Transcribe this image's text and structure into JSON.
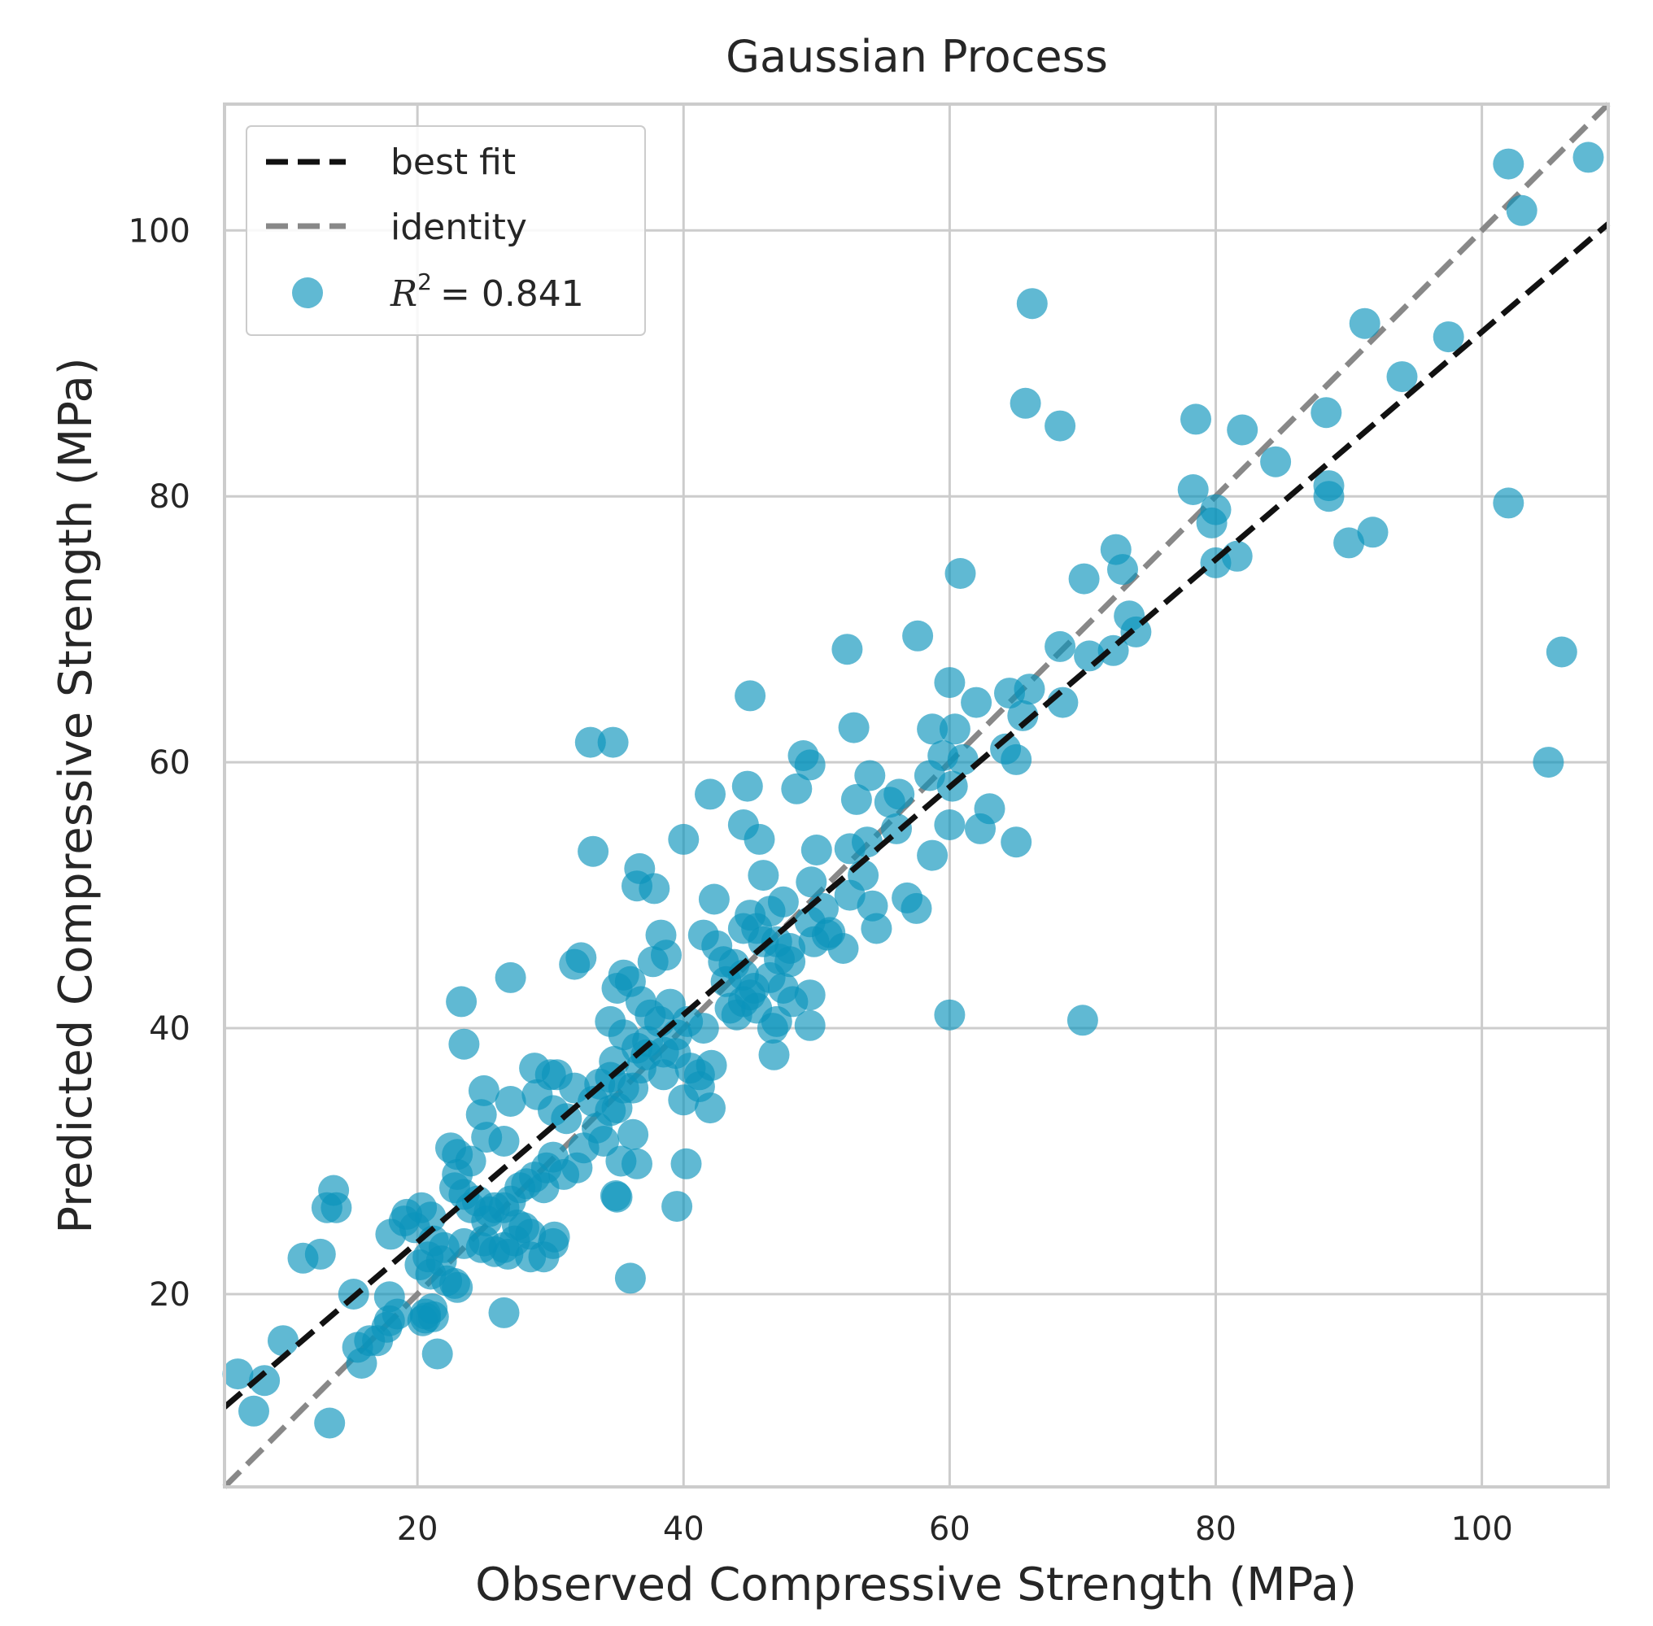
{
  "chart_data": {
    "type": "scatter",
    "title": "Gaussian Process",
    "xlabel": "Observed Compressive Strength (MPa)",
    "ylabel": "Predicted Compressive Strength (MPa)",
    "xlim": [
      5.5,
      109.5
    ],
    "ylim": [
      5.5,
      109.5
    ],
    "xticks": [
      20,
      40,
      60,
      80,
      100
    ],
    "yticks": [
      20,
      40,
      60,
      80,
      100
    ],
    "grid": true,
    "legend_position": "top-left",
    "legend": {
      "best_fit_label": "best fit",
      "identity_label": "identity",
      "r2_symbol": "R",
      "r2_exponent": "2",
      "r2_value": "= 0.841"
    },
    "best_fit_line": {
      "x": [
        5.5,
        109.5
      ],
      "y": [
        11.5,
        100.5
      ]
    },
    "identity_line": {
      "x": [
        5.5,
        109.5
      ],
      "y": [
        5.5,
        109.5
      ]
    },
    "colors": {
      "points": "#0a94bc",
      "best_fit": "#111111",
      "identity": "#888888",
      "grid": "#cccccc"
    },
    "points": [
      [
        108,
        105.5
      ],
      [
        102,
        105
      ],
      [
        103,
        101.5
      ],
      [
        102,
        79.5
      ],
      [
        106,
        68.3
      ],
      [
        105,
        60
      ],
      [
        97.5,
        92
      ],
      [
        91.2,
        93
      ],
      [
        94,
        89
      ],
      [
        88.3,
        86.3
      ],
      [
        88.5,
        80.8
      ],
      [
        88.5,
        80
      ],
      [
        90,
        76.5
      ],
      [
        91.8,
        77.3
      ],
      [
        82,
        85
      ],
      [
        84.5,
        82.6
      ],
      [
        78.5,
        85.8
      ],
      [
        78.3,
        80.5
      ],
      [
        79.7,
        78
      ],
      [
        80,
        79
      ],
      [
        80,
        75
      ],
      [
        81.6,
        75.5
      ],
      [
        66.2,
        94.5
      ],
      [
        65.7,
        87
      ],
      [
        68.3,
        85.3
      ],
      [
        72.5,
        76
      ],
      [
        70.1,
        73.8
      ],
      [
        73,
        74.5
      ],
      [
        73.5,
        71
      ],
      [
        68.3,
        68.7
      ],
      [
        70.5,
        68
      ],
      [
        72.3,
        68.4
      ],
      [
        74,
        69.8
      ],
      [
        68.5,
        64.5
      ],
      [
        66,
        65.5
      ],
      [
        64.5,
        65.2
      ],
      [
        65.5,
        63.5
      ],
      [
        60.8,
        74.2
      ],
      [
        57.6,
        69.5
      ],
      [
        52.3,
        68.5
      ],
      [
        45,
        65
      ],
      [
        60,
        66
      ],
      [
        62,
        64.5
      ],
      [
        60.4,
        62.5
      ],
      [
        61,
        60.2
      ],
      [
        65,
        60.2
      ],
      [
        64.2,
        61
      ],
      [
        59.5,
        60.5
      ],
      [
        60.2,
        58.2
      ],
      [
        58.5,
        59
      ],
      [
        58.7,
        62.5
      ],
      [
        52.8,
        62.6
      ],
      [
        63,
        56.5
      ],
      [
        62.3,
        55
      ],
      [
        60,
        55.3
      ],
      [
        65,
        54
      ],
      [
        58.7,
        53
      ],
      [
        56,
        55
      ],
      [
        55.5,
        57
      ],
      [
        54,
        59
      ],
      [
        53,
        57.2
      ],
      [
        56.2,
        57.6
      ],
      [
        53.8,
        54
      ],
      [
        52.5,
        53.5
      ],
      [
        56.8,
        49.8
      ],
      [
        57.5,
        49
      ],
      [
        54.2,
        49.2
      ],
      [
        54.5,
        47.5
      ],
      [
        52,
        46
      ],
      [
        53.5,
        51.5
      ],
      [
        49,
        60.5
      ],
      [
        49.5,
        59.8
      ],
      [
        48.5,
        58
      ],
      [
        44.8,
        58.2
      ],
      [
        42,
        57.6
      ],
      [
        44.5,
        55.3
      ],
      [
        45.7,
        54.2
      ],
      [
        40,
        54.2
      ],
      [
        46,
        51.5
      ],
      [
        50,
        53.4
      ],
      [
        49.6,
        51
      ],
      [
        33,
        61.5
      ],
      [
        34.7,
        61.5
      ],
      [
        33.2,
        53.3
      ],
      [
        36.7,
        52
      ],
      [
        36.5,
        50.7
      ],
      [
        37.8,
        50.5
      ],
      [
        42.3,
        49.7
      ],
      [
        45,
        48.5
      ],
      [
        44.5,
        47.5
      ],
      [
        46,
        46.5
      ],
      [
        47,
        46.5
      ],
      [
        48,
        45
      ],
      [
        47.5,
        43
      ],
      [
        48.2,
        42
      ],
      [
        49.5,
        42.5
      ],
      [
        46.5,
        43.8
      ],
      [
        45.3,
        43
      ],
      [
        45,
        42.5
      ],
      [
        44.5,
        42
      ],
      [
        43.2,
        43.5
      ],
      [
        43.8,
        44.8
      ],
      [
        42.5,
        46.2
      ],
      [
        41.5,
        47
      ],
      [
        43,
        45
      ],
      [
        44,
        41
      ],
      [
        45.5,
        41.5
      ],
      [
        47,
        40.5
      ],
      [
        46.7,
        40
      ],
      [
        49.5,
        40.2
      ],
      [
        46.8,
        38
      ],
      [
        43.5,
        41.5
      ],
      [
        44.5,
        44
      ],
      [
        50.8,
        47
      ],
      [
        49.5,
        48
      ],
      [
        50.5,
        49
      ],
      [
        52.5,
        50
      ],
      [
        47.5,
        49.5
      ],
      [
        46.5,
        48.8
      ],
      [
        48,
        46
      ],
      [
        45.5,
        47.5
      ],
      [
        51,
        47.2
      ],
      [
        49.8,
        46.5
      ],
      [
        47.2,
        45.2
      ],
      [
        60,
        41
      ],
      [
        70,
        40.6
      ],
      [
        38.3,
        47
      ],
      [
        38.7,
        45.5
      ],
      [
        37.7,
        45
      ],
      [
        35.5,
        44
      ],
      [
        35,
        43
      ],
      [
        36,
        43.5
      ],
      [
        36.8,
        42
      ],
      [
        37.5,
        41
      ],
      [
        38.2,
        40.5
      ],
      [
        39,
        41.8
      ],
      [
        39.5,
        39.5
      ],
      [
        40.3,
        40.5
      ],
      [
        41.5,
        40
      ],
      [
        37.3,
        39
      ],
      [
        36.5,
        38.5
      ],
      [
        37.2,
        38
      ],
      [
        35.5,
        39.5
      ],
      [
        34.5,
        40.5
      ],
      [
        34.8,
        37.5
      ],
      [
        38.5,
        38.2
      ],
      [
        39.4,
        38.1
      ],
      [
        40.5,
        37
      ],
      [
        41.2,
        36.5
      ],
      [
        42.1,
        37.2
      ],
      [
        42,
        34
      ],
      [
        40,
        34.6
      ],
      [
        41.2,
        35.6
      ],
      [
        38.5,
        36.5
      ],
      [
        36.8,
        37
      ],
      [
        35.5,
        35.5
      ],
      [
        34.5,
        36.3
      ],
      [
        36.2,
        35.5
      ],
      [
        33.7,
        35.8
      ],
      [
        31.8,
        44.8
      ],
      [
        32.3,
        45.3
      ],
      [
        27,
        43.8
      ],
      [
        23.3,
        42
      ],
      [
        23.5,
        38.8
      ],
      [
        28.8,
        37
      ],
      [
        30.5,
        36.5
      ],
      [
        30,
        36.5
      ],
      [
        31.8,
        35.5
      ],
      [
        33.2,
        34.5
      ],
      [
        35,
        34
      ],
      [
        34.5,
        33.8
      ],
      [
        33.5,
        32.5
      ],
      [
        34,
        31.5
      ],
      [
        36.2,
        32
      ],
      [
        35.3,
        30
      ],
      [
        36.5,
        29.8
      ],
      [
        40.2,
        29.8
      ],
      [
        34.9,
        27.4
      ],
      [
        35,
        27.3
      ],
      [
        39.5,
        26.6
      ],
      [
        36,
        21.2
      ],
      [
        25,
        35.3
      ],
      [
        24.8,
        33.5
      ],
      [
        25.2,
        31.8
      ],
      [
        26.5,
        31.5
      ],
      [
        27,
        34.5
      ],
      [
        29,
        35
      ],
      [
        30.2,
        33.8
      ],
      [
        31.2,
        33.2
      ],
      [
        32.5,
        31
      ],
      [
        30.2,
        30.3
      ],
      [
        29.7,
        29.5
      ],
      [
        28.8,
        28.8
      ],
      [
        28.2,
        28.3
      ],
      [
        27.7,
        28
      ],
      [
        27,
        27
      ],
      [
        26.5,
        26.5
      ],
      [
        25.8,
        26.5
      ],
      [
        25.4,
        26.2
      ],
      [
        25.2,
        25.5
      ],
      [
        27.5,
        25.2
      ],
      [
        28,
        25
      ],
      [
        28.5,
        24.5
      ],
      [
        27.3,
        24
      ],
      [
        26.5,
        23.5
      ],
      [
        26.8,
        23
      ],
      [
        25.8,
        23.2
      ],
      [
        28.5,
        22.8
      ],
      [
        29.5,
        22.8
      ],
      [
        30.2,
        23.8
      ],
      [
        30.3,
        24.3
      ],
      [
        29.5,
        28
      ],
      [
        31,
        29
      ],
      [
        32,
        29.5
      ],
      [
        23,
        30.5
      ],
      [
        24,
        30
      ],
      [
        22.5,
        31
      ],
      [
        23,
        29
      ],
      [
        22.8,
        28
      ],
      [
        23.5,
        27.5
      ],
      [
        24.5,
        27
      ],
      [
        24,
        26.5
      ],
      [
        25,
        24
      ],
      [
        23.5,
        23.8
      ],
      [
        22,
        23.5
      ],
      [
        21.2,
        24
      ],
      [
        21.8,
        22.5
      ],
      [
        20.8,
        22.8
      ],
      [
        20.2,
        22.2
      ],
      [
        21,
        21.5
      ],
      [
        22.2,
        21
      ],
      [
        22.8,
        20.8
      ],
      [
        23,
        20.5
      ],
      [
        24.8,
        23.5
      ],
      [
        26.5,
        18.6
      ],
      [
        21.5,
        15.5
      ],
      [
        13.7,
        27.8
      ],
      [
        13.2,
        26.5
      ],
      [
        13.9,
        26.5
      ],
      [
        19.2,
        26
      ],
      [
        19,
        25.5
      ],
      [
        18,
        24.5
      ],
      [
        20.3,
        26.5
      ],
      [
        19.8,
        25
      ],
      [
        21,
        25.8
      ],
      [
        12.7,
        23
      ],
      [
        11.4,
        22.7
      ],
      [
        15.2,
        20
      ],
      [
        17.9,
        19.8
      ],
      [
        17.9,
        18
      ],
      [
        18.5,
        18.5
      ],
      [
        17.7,
        17.5
      ],
      [
        17,
        16.5
      ],
      [
        16.4,
        16.5
      ],
      [
        15.5,
        16
      ],
      [
        15.8,
        14.8
      ],
      [
        20.4,
        18
      ],
      [
        20.6,
        18.5
      ],
      [
        21.2,
        18.3
      ],
      [
        21.1,
        18.9
      ],
      [
        20.6,
        18.2
      ],
      [
        9.9,
        16.5
      ],
      [
        8.5,
        13.5
      ],
      [
        6.5,
        14
      ],
      [
        7.7,
        11.2
      ],
      [
        13.4,
        10.3
      ]
    ]
  }
}
